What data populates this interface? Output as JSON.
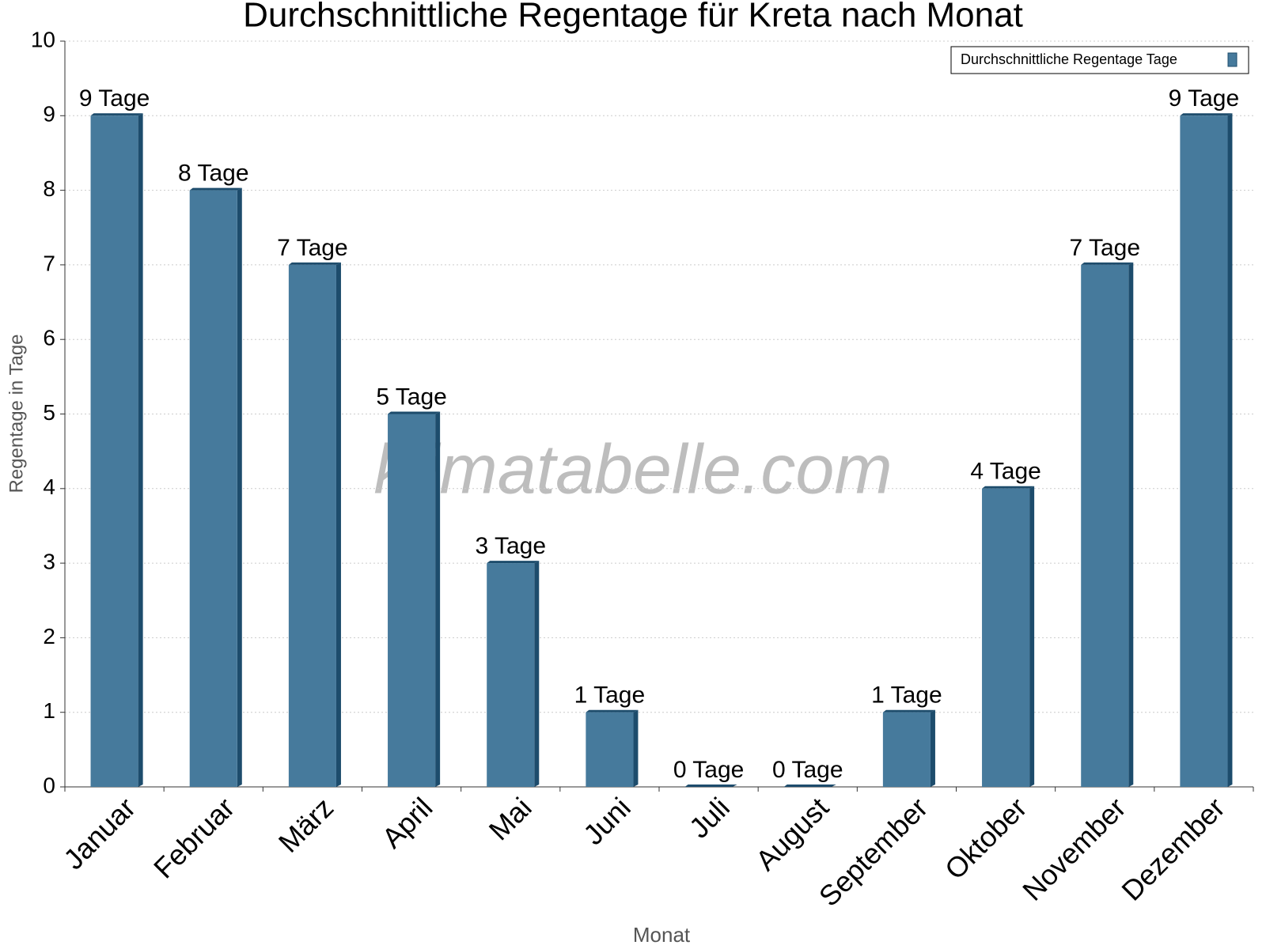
{
  "chart_data": {
    "type": "bar",
    "title": "Durchschnittliche Regentage für Kreta nach Monat",
    "x_label": "Monat",
    "y_label": "Regentage in Tage",
    "watermark": "klimatabelle.com",
    "categories": [
      "Januar",
      "Februar",
      "März",
      "April",
      "Mai",
      "Juni",
      "Juli",
      "August",
      "September",
      "Oktober",
      "November",
      "Dezember"
    ],
    "series": [
      {
        "name": "Durchschnittliche Regentage Tage",
        "color": "#467a9c",
        "values": [
          9,
          8,
          7,
          5,
          3,
          1,
          0,
          0,
          1,
          4,
          7,
          9
        ],
        "value_labels": [
          "9 Tage",
          "8 Tage",
          "7 Tage",
          "5 Tage",
          "3 Tage",
          "1 Tage",
          "0 Tage",
          "0 Tage",
          "1 Tage",
          "4 Tage",
          "7 Tage",
          "9 Tage"
        ]
      }
    ],
    "ylim": [
      0,
      10
    ],
    "yticks": [
      0,
      1,
      2,
      3,
      4,
      5,
      6,
      7,
      8,
      9,
      10
    ],
    "grid": true,
    "legend": "upper right"
  }
}
